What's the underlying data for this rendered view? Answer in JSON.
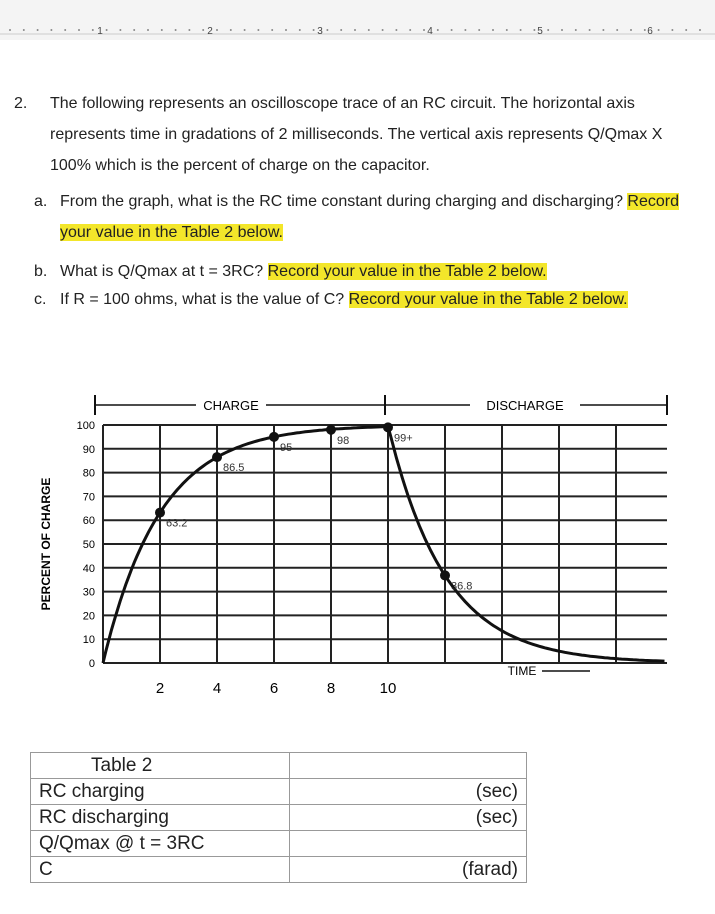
{
  "ruler": [
    1,
    2,
    3,
    4,
    5,
    6
  ],
  "question": {
    "number": "2.",
    "text": "The following represents an oscilloscope trace of an RC circuit. The horizontal axis represents time in gradations of 2 milliseconds. The vertical axis represents Q/Qmax X 100% which is the percent of charge on the capacitor."
  },
  "parts": [
    {
      "label": "a.",
      "text": "From the graph, what is the RC time constant during charging and discharging?",
      "highlight": "Record your value in the Table 2 below."
    },
    {
      "label": "b.",
      "text": "What is Q/Qmax at t = 3RC?",
      "highlight": "Record your value in the Table 2 below."
    },
    {
      "label": "c.",
      "text": "If R = 100 ohms, what is the value of C?",
      "highlight": "Record your value in the Table 2 below."
    }
  ],
  "figure": {
    "y_label": "PERCENT OF CHARGE",
    "charge_label": "CHARGE",
    "discharge_label": "DISCHARGE",
    "time_label": "TIME",
    "yticks": [
      0,
      10,
      20,
      30,
      40,
      50,
      60,
      70,
      80,
      90,
      100
    ],
    "xticks": [
      2,
      4,
      6,
      8,
      10
    ],
    "points": [
      {
        "x": 2,
        "value": 63.2,
        "label": "63.2"
      },
      {
        "x": 4,
        "value": 86.5,
        "label": "86.5"
      },
      {
        "x": 6,
        "value": 95,
        "label": "95"
      },
      {
        "x": 8,
        "value": 98,
        "label": "98"
      },
      {
        "x": 10,
        "value": 99,
        "label": "99+"
      },
      {
        "x": 12,
        "value": 36.8,
        "label": "36.8"
      }
    ]
  },
  "table": {
    "rows": [
      [
        "Table 2",
        ""
      ],
      [
        "RC charging",
        "(sec)"
      ],
      [
        "RC discharging",
        "(sec)"
      ],
      [
        "Q/Qmax @ t = 3RC",
        ""
      ],
      [
        "C",
        "(farad)"
      ]
    ]
  }
}
